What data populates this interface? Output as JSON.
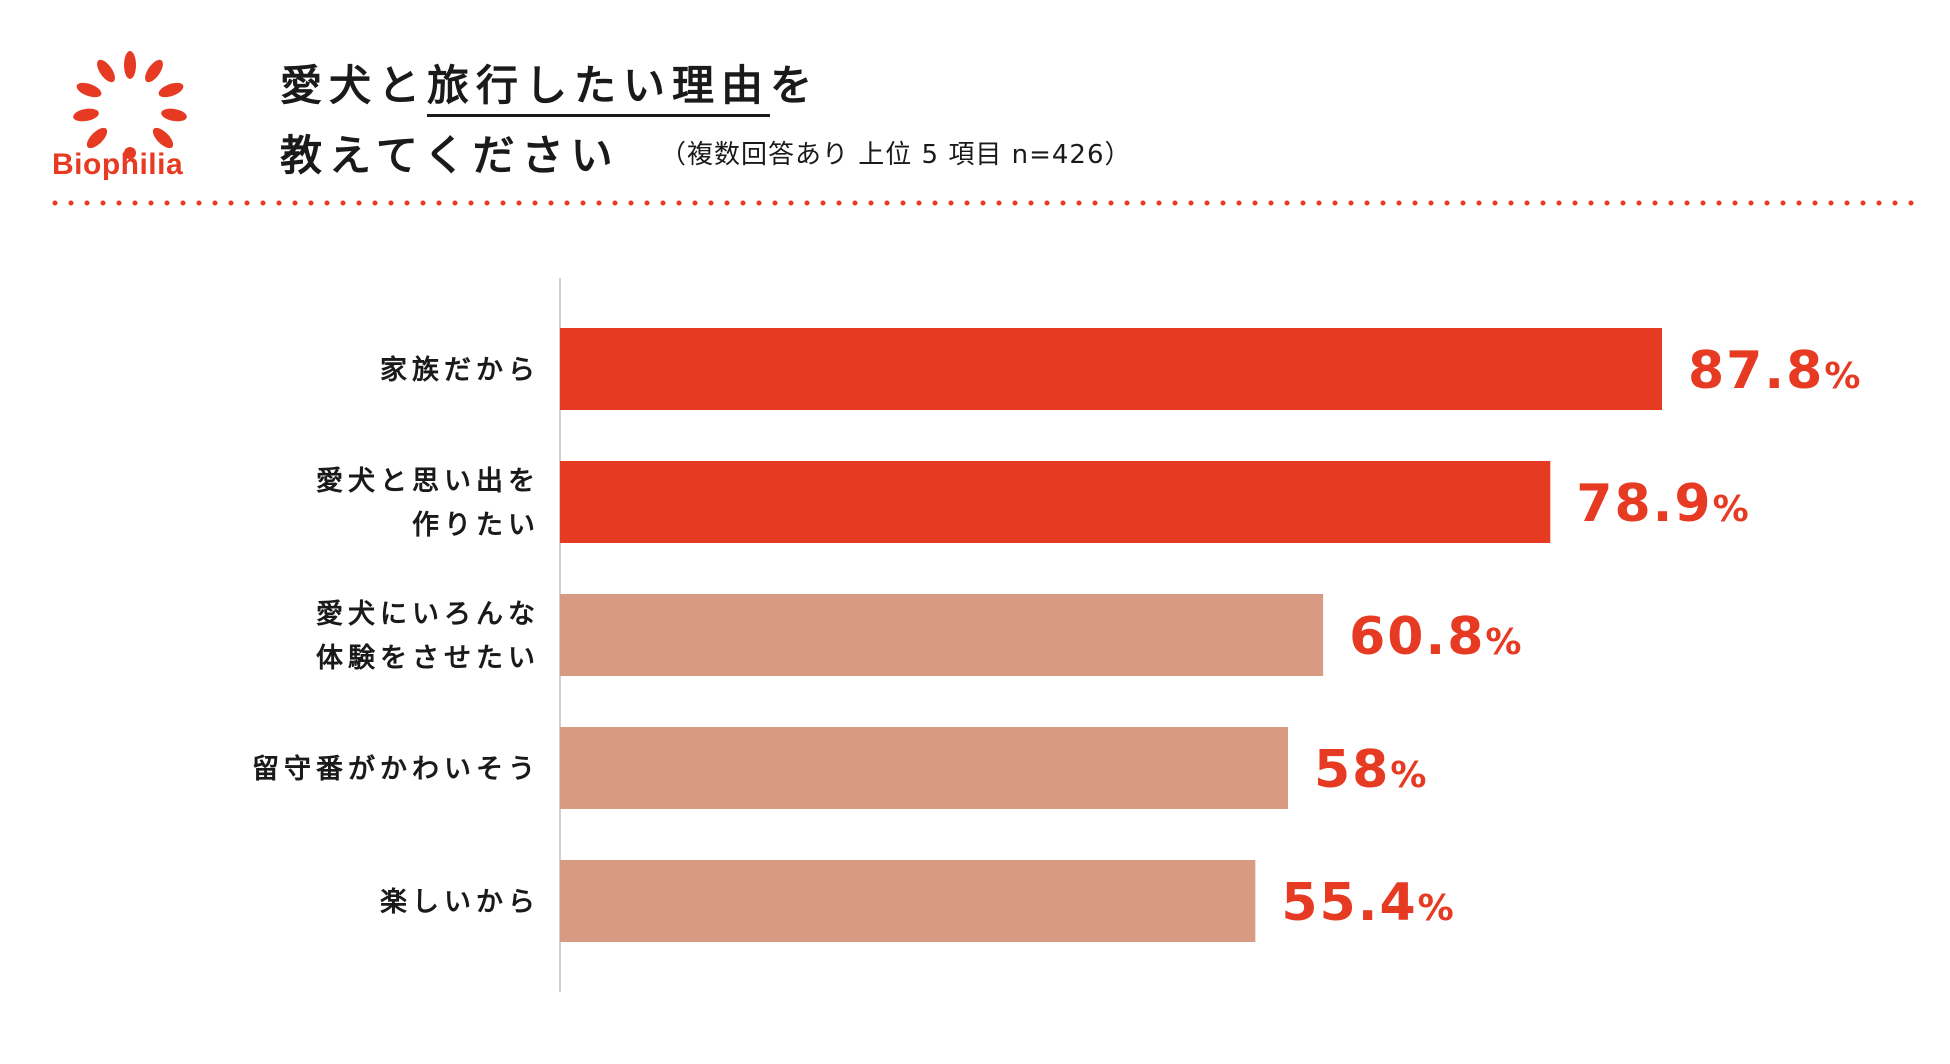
{
  "brand": {
    "name": "Biophilia",
    "color": "#e63a23"
  },
  "title": {
    "line1_prefix": "愛犬と",
    "line1_underlined": "旅行したい理由",
    "line1_suffix": "を",
    "line2": "教えてください",
    "note": "（複数回答あり 上位 5 項目 n=426）"
  },
  "colors": {
    "accent": "#e63a23",
    "muted": "#d99a84",
    "axis": "#d8d0c6"
  },
  "chart_data": {
    "type": "bar",
    "orientation": "horizontal",
    "title": "愛犬と旅行したい理由を教えてください",
    "unit": "%",
    "xlim": [
      0,
      100
    ],
    "categories": [
      [
        "家族だから"
      ],
      [
        "愛犬と思い出を",
        "作りたい"
      ],
      [
        "愛犬にいろんな",
        "体験をさせたい"
      ],
      [
        "留守番がかわいそう"
      ],
      [
        "楽しいから"
      ]
    ],
    "values": [
      87.8,
      78.9,
      60.8,
      58,
      55.4
    ],
    "value_labels": [
      "87.8",
      "78.9",
      "60.8",
      "58",
      "55.4"
    ],
    "highlight": [
      true,
      true,
      false,
      false,
      false
    ]
  }
}
